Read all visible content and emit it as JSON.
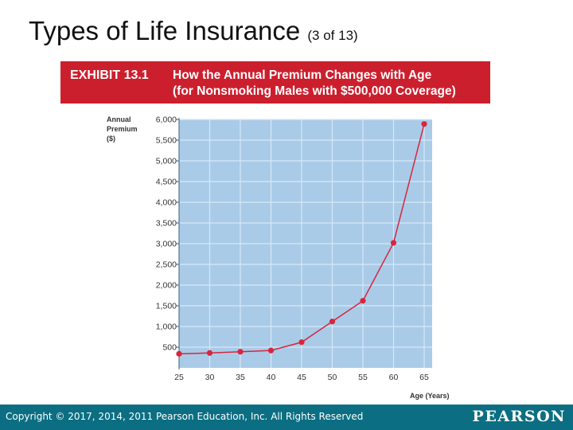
{
  "slide": {
    "title": "Types of Life Insurance",
    "title_sub": "(3 of 13)"
  },
  "banner": {
    "exhibit_label": "EXHIBIT 13.1",
    "heading_line1": "How the Annual Premium Changes with Age",
    "heading_line2": "(for Nonsmoking Males with $500,000 Coverage)",
    "color": "#cc1f2d"
  },
  "chart_data": {
    "type": "line",
    "title": "How the Annual Premium Changes with Age (for Nonsmoking Males with $500,000 Coverage)",
    "ylabel_lines": [
      "Annual",
      "Premium",
      "($)"
    ],
    "xlabel": "Age (Years)",
    "x": [
      25,
      30,
      35,
      40,
      45,
      50,
      55,
      60,
      65
    ],
    "x_tick_labels": [
      "25",
      "30",
      "35",
      "40",
      "45",
      "50",
      "55",
      "60",
      "65"
    ],
    "y_ticks": [
      500,
      1000,
      1500,
      2000,
      2500,
      3000,
      3500,
      4000,
      4500,
      5000,
      5500,
      6000
    ],
    "y_tick_labels": [
      "500",
      "1,000",
      "1,500",
      "2,000",
      "2,500",
      "3,000",
      "3,500",
      "4,000",
      "4,500",
      "5,000",
      "5,500",
      "6,000"
    ],
    "series": [
      {
        "values": [
          340,
          360,
          390,
          420,
          620,
          1120,
          1620,
          3020,
          5890
        ]
      }
    ],
    "xlim": [
      25,
      65
    ],
    "ylim": [
      0,
      6000
    ],
    "grid": true,
    "colors": {
      "plot_bg": "#a9cbe8",
      "grid": "#d7e8f6",
      "line": "#d7263d",
      "marker": "#d7263d"
    }
  },
  "footer": {
    "copyright": "Copyright © 2017, 2014, 2011 Pearson Education, Inc. All Rights Reserved",
    "brand": "PEARSON",
    "color": "#0b6e82"
  }
}
